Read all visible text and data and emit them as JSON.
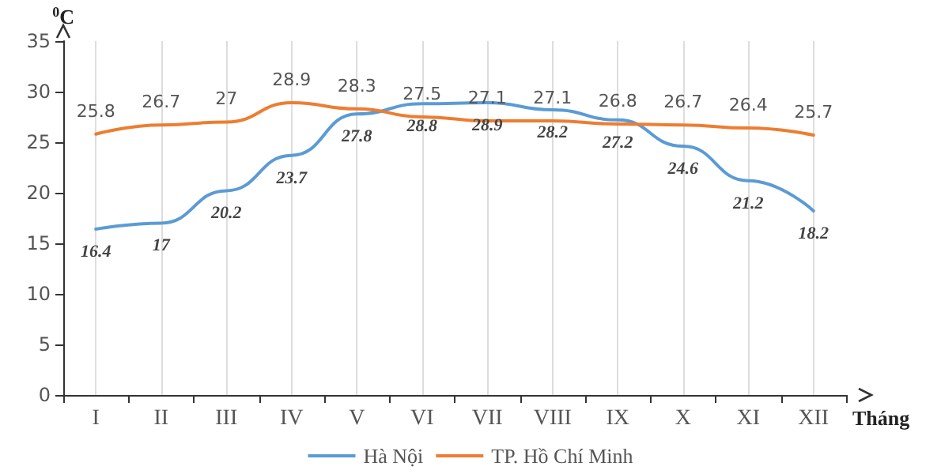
{
  "chart_data": {
    "type": "line",
    "xlabel": "Tháng",
    "ylabel": "$^{0}$C",
    "categories": [
      "I",
      "II",
      "III",
      "IV",
      "V",
      "VI",
      "VII",
      "VIII",
      "IX",
      "X",
      "XI",
      "XII"
    ],
    "series": [
      {
        "name": "Hà Nội",
        "color": "#5b9bd5",
        "values": [
          16.4,
          17,
          20.2,
          23.7,
          27.8,
          28.8,
          28.9,
          28.2,
          27.2,
          24.6,
          21.2,
          18.2
        ]
      },
      {
        "name": "TP. Hồ Chí Minh",
        "color": "#ed7d31",
        "values": [
          25.8,
          26.7,
          27,
          28.9,
          28.3,
          27.5,
          27.1,
          27.1,
          26.8,
          26.7,
          26.4,
          25.7
        ]
      }
    ],
    "ylim": [
      0,
      35
    ],
    "yticks": [
      0,
      5,
      10,
      15,
      20,
      25,
      30,
      35
    ],
    "grid": "x",
    "legend": "bottom",
    "marker": "none",
    "line_style": "solid",
    "data_labels": true
  }
}
